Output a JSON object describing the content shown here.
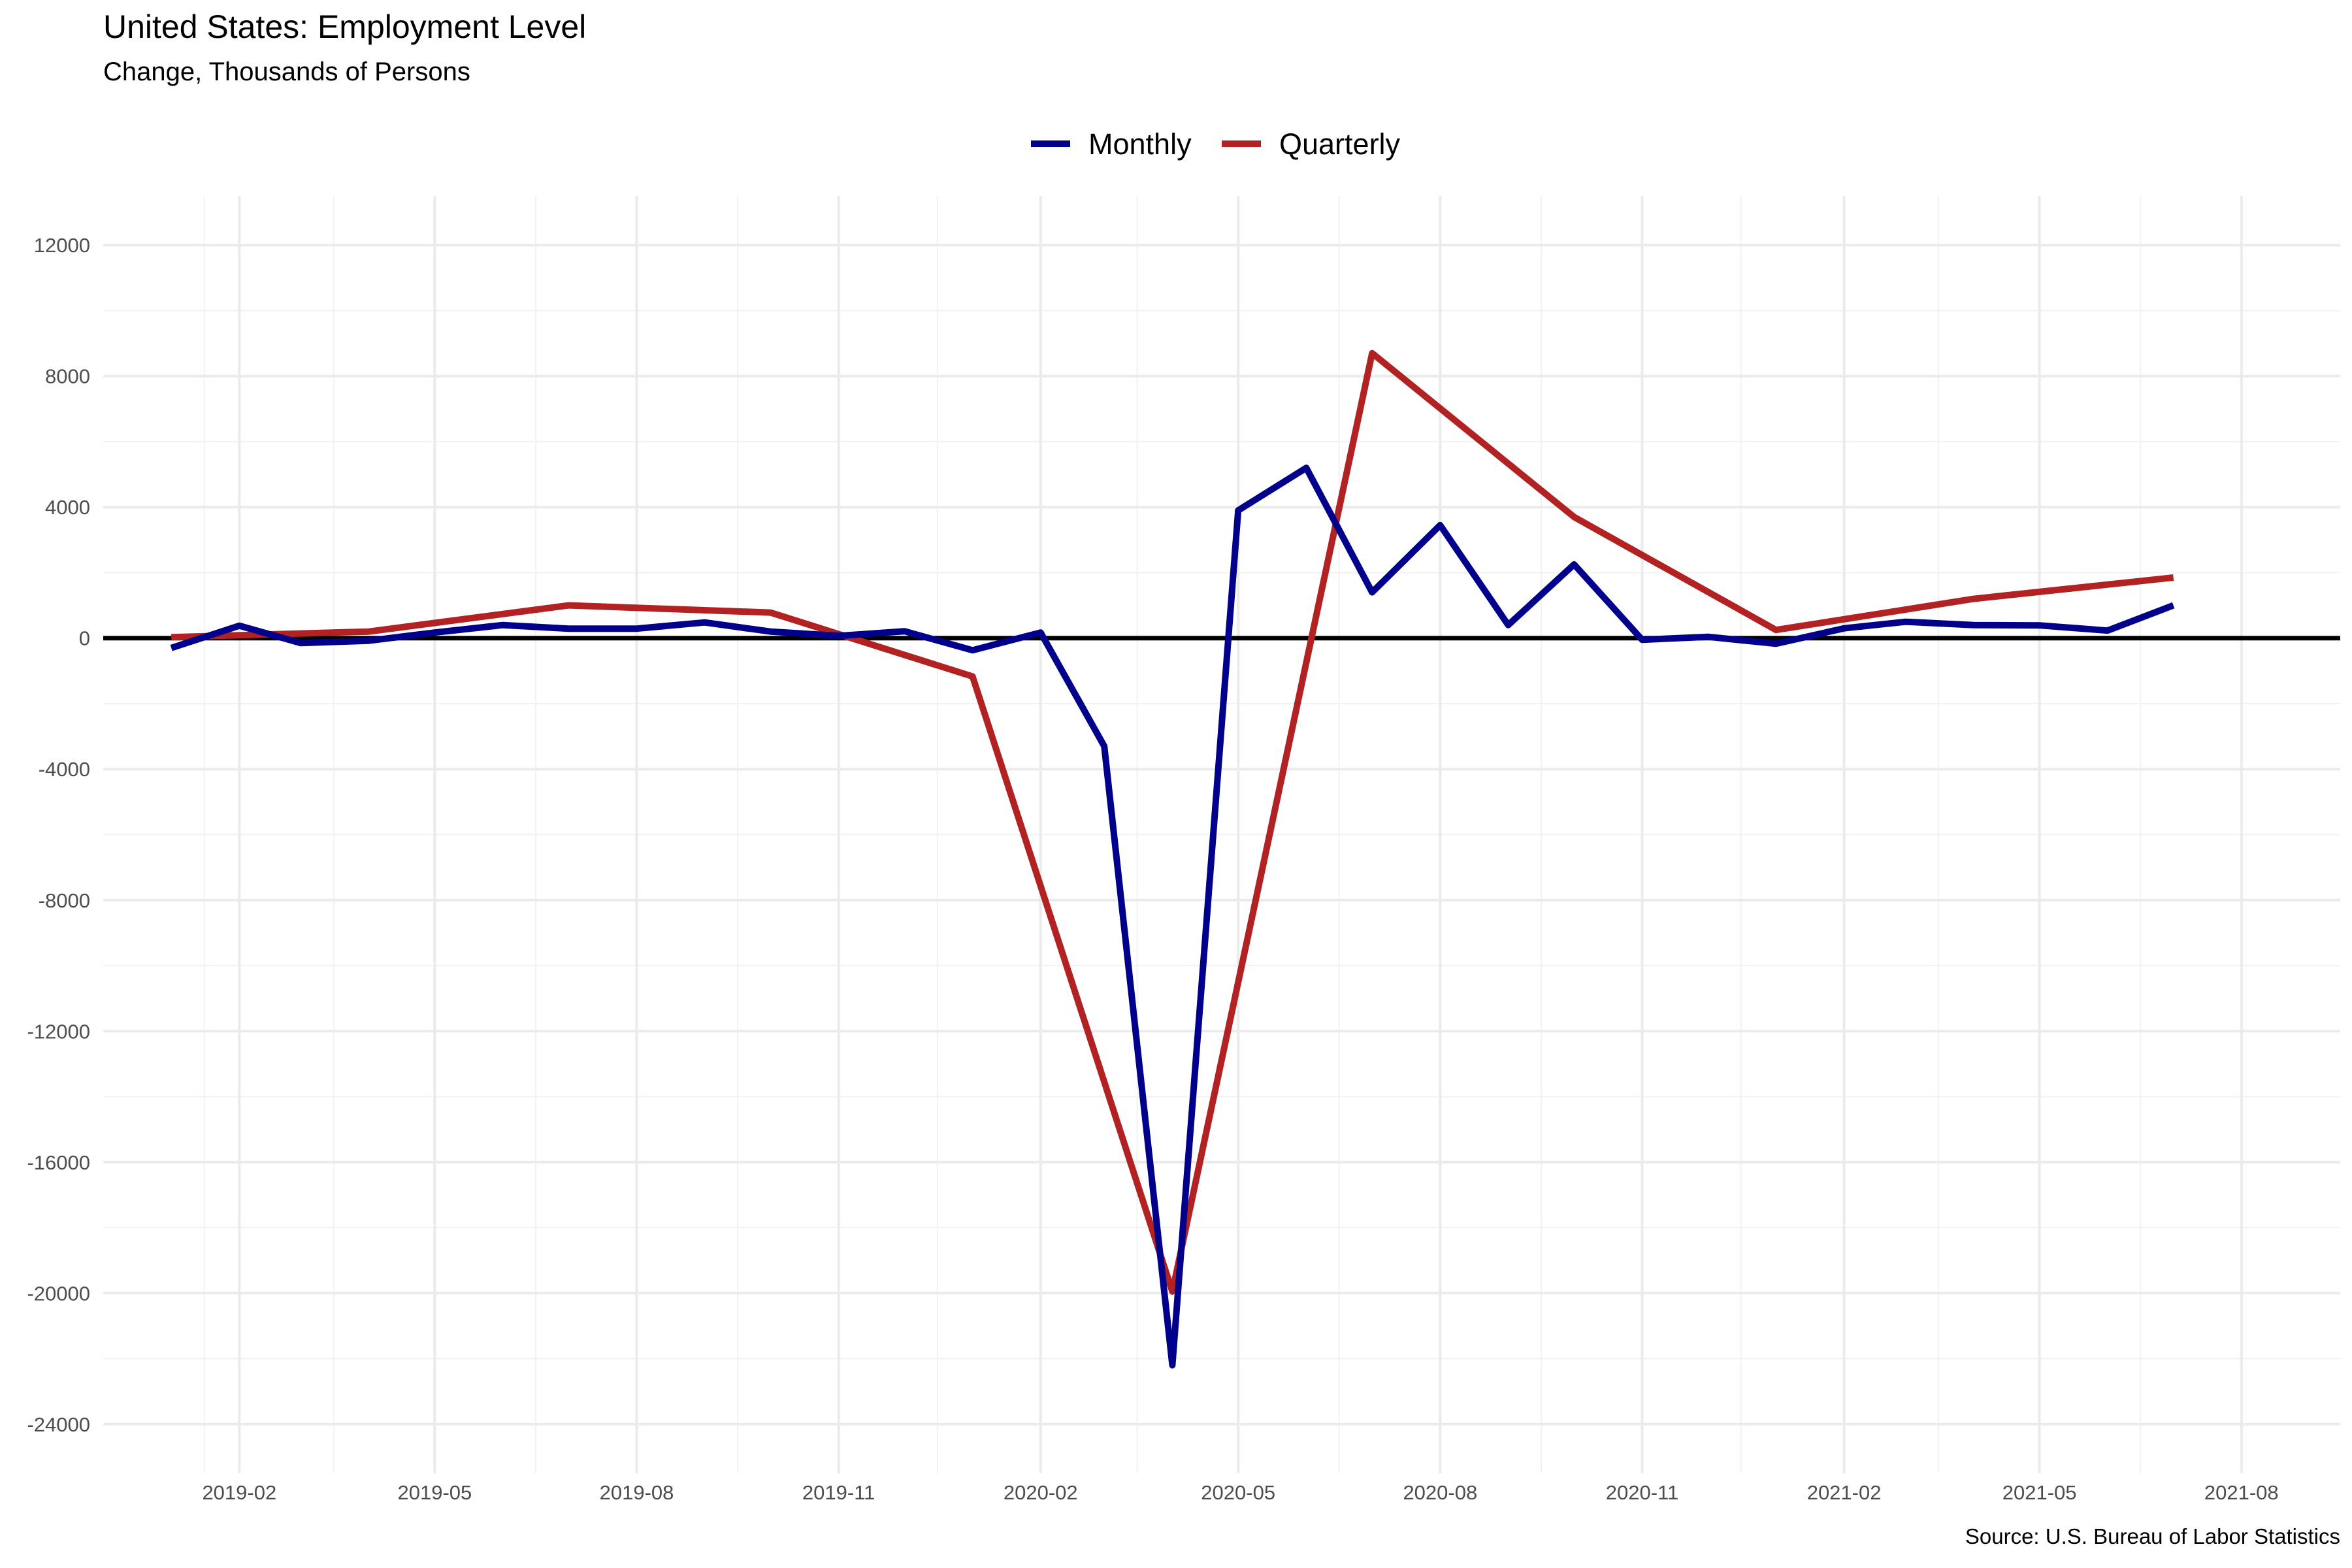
{
  "chart_data": {
    "type": "line",
    "title": "United States: Employment Level",
    "subtitle": "Change, Thousands of Persons",
    "caption": "Source: U.S. Bureau of Labor Statistics",
    "xlabel": "",
    "ylabel": "",
    "ylim": [
      -25500,
      13500
    ],
    "y_ticks": [
      -24000,
      -20000,
      -16000,
      -12000,
      -8000,
      -4000,
      0,
      4000,
      8000,
      12000
    ],
    "x_ticks": [
      "2019-02",
      "2019-05",
      "2019-08",
      "2019-11",
      "2020-02",
      "2020-05",
      "2020-08",
      "2020-11",
      "2021-02",
      "2021-05",
      "2021-08"
    ],
    "x_range": [
      "2018-12-01",
      "2021-09-15"
    ],
    "grid": true,
    "zero_line": true,
    "legend": {
      "position": "top",
      "items": [
        {
          "name": "Monthly",
          "color": "#00008B"
        },
        {
          "name": "Quarterly",
          "color": "#B22222"
        }
      ]
    },
    "series": [
      {
        "name": "Monthly",
        "color": "#00008B",
        "x": [
          "2019-01-01",
          "2019-02-01",
          "2019-03-01",
          "2019-04-01",
          "2019-05-01",
          "2019-06-01",
          "2019-07-01",
          "2019-08-01",
          "2019-09-01",
          "2019-10-01",
          "2019-11-01",
          "2019-12-01",
          "2020-01-01",
          "2020-02-01",
          "2020-03-01",
          "2020-04-01",
          "2020-05-01",
          "2020-06-01",
          "2020-07-01",
          "2020-08-01",
          "2020-09-01",
          "2020-10-01",
          "2020-11-01",
          "2020-12-01",
          "2021-01-01",
          "2021-02-01",
          "2021-03-01",
          "2021-04-01",
          "2021-05-01",
          "2021-06-01",
          "2021-07-01"
        ],
        "values": [
          -300,
          380,
          -150,
          -80,
          170,
          400,
          290,
          290,
          480,
          200,
          70,
          210,
          -370,
          170,
          -3300,
          -22200,
          3900,
          5200,
          1400,
          3450,
          400,
          2250,
          -50,
          40,
          -170,
          300,
          500,
          400,
          390,
          230,
          1000
        ]
      },
      {
        "name": "Quarterly",
        "color": "#B22222",
        "x": [
          "2019-01-01",
          "2019-04-01",
          "2019-07-01",
          "2019-10-01",
          "2020-01-01",
          "2020-04-01",
          "2020-07-01",
          "2020-10-01",
          "2021-01-01",
          "2021-04-01",
          "2021-07-01"
        ],
        "values": [
          30,
          200,
          1000,
          780,
          -1170,
          -19950,
          8700,
          3700,
          250,
          1200,
          1850
        ]
      }
    ]
  }
}
